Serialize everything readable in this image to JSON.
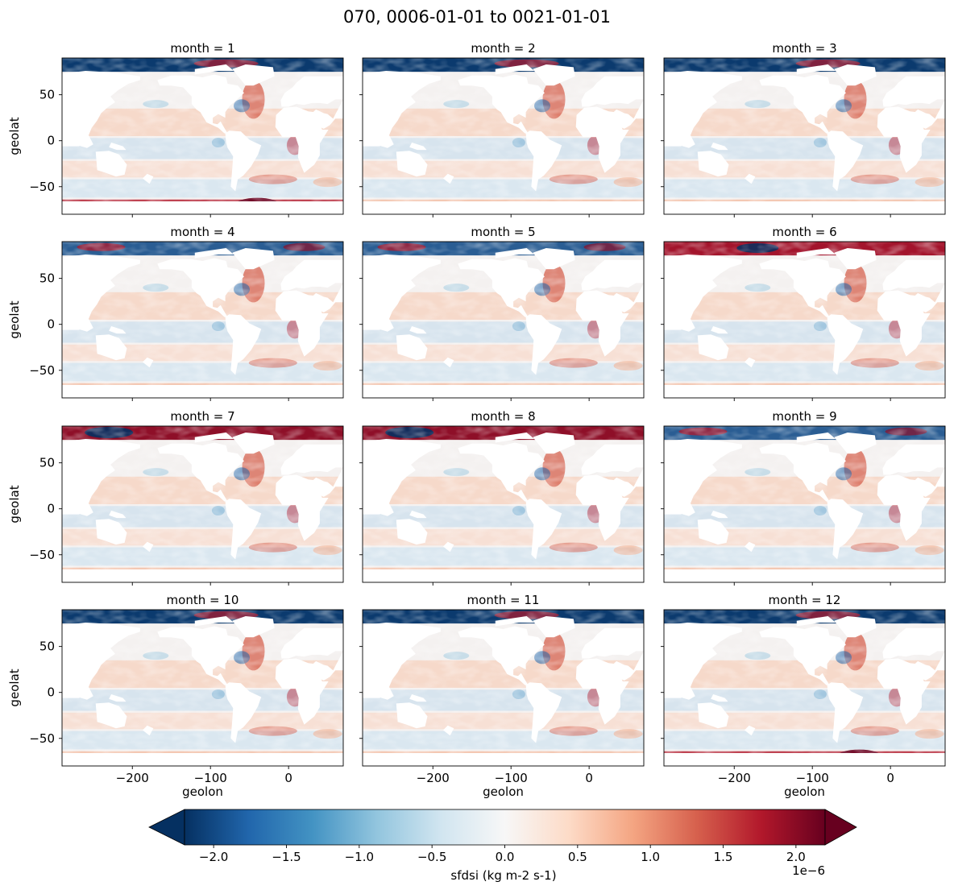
{
  "chart_data": {
    "type": "heatmap",
    "title": "070, 0006-01-01 to 0021-01-01",
    "variable": "sfdsi",
    "colorbar_label": "sfdsi (kg m-2 s-1)",
    "colorbar_multiplier": "1e−6",
    "colormap": "RdBu_r",
    "colorbar_range": [
      -2.2,
      2.2
    ],
    "colorbar_extend": "both",
    "colorbar_ticks": [
      -2.0,
      -1.5,
      -1.0,
      -0.5,
      0.0,
      0.5,
      1.0,
      1.5,
      2.0
    ],
    "colorbar_tick_labels": [
      "−2.0",
      "−1.5",
      "−1.0",
      "−0.5",
      "0.0",
      "0.5",
      "1.0",
      "1.5",
      "2.0"
    ],
    "xlabel": "geolon",
    "ylabel": "geolat",
    "xlim": [
      -290,
      70
    ],
    "ylim": [
      -80,
      90
    ],
    "xticks": [
      -200,
      -100,
      0
    ],
    "xtick_labels": [
      "−200",
      "−100",
      "0"
    ],
    "yticks": [
      50,
      0,
      -50
    ],
    "ytick_labels": [
      "50",
      "0",
      "−50"
    ],
    "panels": [
      {
        "title": "month = 1"
      },
      {
        "title": "month = 2"
      },
      {
        "title": "month = 3"
      },
      {
        "title": "month = 4"
      },
      {
        "title": "month = 5"
      },
      {
        "title": "month = 6"
      },
      {
        "title": "month = 7"
      },
      {
        "title": "month = 8"
      },
      {
        "title": "month = 9"
      },
      {
        "title": "month = 10"
      },
      {
        "title": "month = 11"
      },
      {
        "title": "month = 12"
      }
    ]
  },
  "colors": {
    "land": "#ffffff",
    "ocean_neutral": "#f7f7f7",
    "strong_positive": "#67001f",
    "strong_negative": "#053061"
  }
}
